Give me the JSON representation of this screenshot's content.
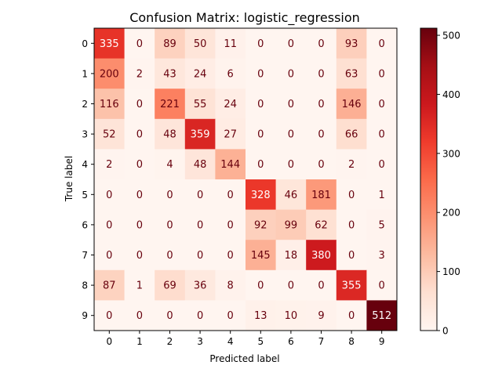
{
  "chart_data": {
    "type": "heatmap",
    "title": "Confusion Matrix: logistic_regression",
    "xlabel": "Predicted label",
    "ylabel": "True label",
    "x_categories": [
      "0",
      "1",
      "2",
      "3",
      "4",
      "5",
      "6",
      "7",
      "8",
      "9"
    ],
    "y_categories": [
      "0",
      "1",
      "2",
      "3",
      "4",
      "5",
      "6",
      "7",
      "8",
      "9"
    ],
    "values": [
      [
        335,
        0,
        89,
        50,
        11,
        0,
        0,
        0,
        93,
        0
      ],
      [
        200,
        2,
        43,
        24,
        6,
        0,
        0,
        0,
        63,
        0
      ],
      [
        116,
        0,
        221,
        55,
        24,
        0,
        0,
        0,
        146,
        0
      ],
      [
        52,
        0,
        48,
        359,
        27,
        0,
        0,
        0,
        66,
        0
      ],
      [
        2,
        0,
        4,
        48,
        144,
        0,
        0,
        0,
        2,
        0
      ],
      [
        0,
        0,
        0,
        0,
        0,
        328,
        46,
        181,
        0,
        1
      ],
      [
        0,
        0,
        0,
        0,
        0,
        92,
        99,
        62,
        0,
        5
      ],
      [
        0,
        0,
        0,
        0,
        0,
        145,
        18,
        380,
        0,
        3
      ],
      [
        87,
        1,
        69,
        36,
        8,
        0,
        0,
        0,
        355,
        0
      ],
      [
        0,
        0,
        0,
        0,
        0,
        13,
        10,
        9,
        0,
        512
      ]
    ],
    "colormap": "Reds",
    "value_range": [
      0,
      512
    ],
    "colorbar_ticks": [
      0,
      100,
      200,
      300,
      400,
      500
    ],
    "grid": false
  }
}
